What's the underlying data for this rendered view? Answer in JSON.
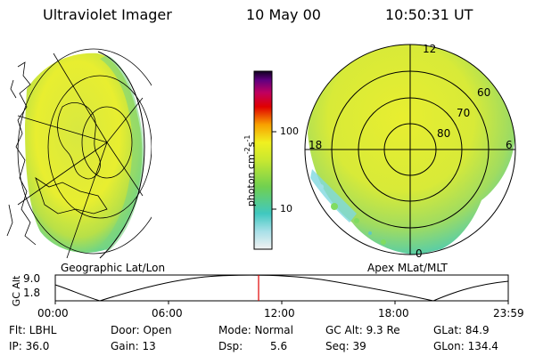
{
  "header": {
    "title": "Ultraviolet Imager",
    "date": "10 May 00",
    "time": "10:50:31 UT"
  },
  "colorbar": {
    "label": "photon cm",
    "label_exp1": "-2",
    "label_mid": "s",
    "label_exp2": "-1",
    "ticks": [
      "100",
      "10"
    ]
  },
  "polar": {
    "mlt_labels": [
      "12",
      "18",
      "6",
      "0"
    ],
    "lat_labels": [
      "60",
      "70",
      "80"
    ]
  },
  "captions": {
    "left": "Geographic Lat/Lon",
    "right": "Apex MLat/MLT"
  },
  "timeline": {
    "axis_label": "GC Alt",
    "y_ticks": [
      "9.0",
      "1.8"
    ],
    "x_ticks": [
      "00:00",
      "06:00",
      "12:00",
      "18:00",
      "23:59"
    ],
    "marker_color": "#e00000"
  },
  "status": {
    "flt": "Flt: LBHL",
    "ip": "IP: 36.0",
    "door": "Door: Open",
    "gain": "Gain: 13",
    "mode": "Mode: Normal",
    "dsp_label": "Dsp:",
    "dsp_value": "5.6",
    "gcalt": "GC Alt: 9.3 Re",
    "seq": "Seq: 39",
    "glat": "GLat:  84.9",
    "glon": "GLon: 134.4"
  }
}
